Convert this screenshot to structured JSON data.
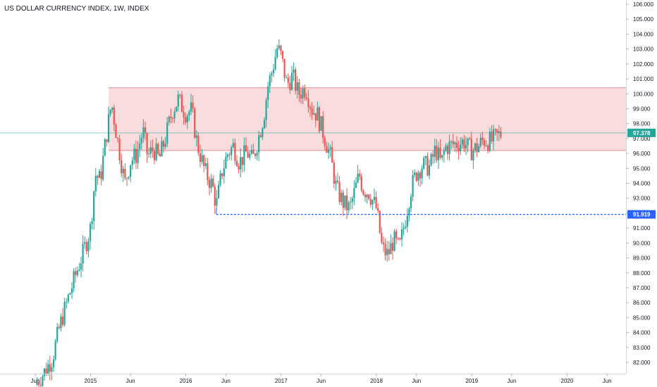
{
  "chart_data": {
    "type": "candlestick",
    "title": "US DOLLAR CURRENCY INDEX, 1W, INDEX",
    "ylim": [
      81.2,
      106.2
    ],
    "y_ticks": [
      "82.000",
      "83.000",
      "84.000",
      "85.000",
      "86.000",
      "87.000",
      "88.000",
      "89.000",
      "90.000",
      "91.000",
      "92.000",
      "93.000",
      "94.000",
      "95.000",
      "96.000",
      "97.000",
      "98.000",
      "99.000",
      "100.000",
      "101.000",
      "102.000",
      "103.000",
      "104.000",
      "105.000",
      "106.000"
    ],
    "x_ticks": [
      {
        "label": "Jun",
        "t": 2014.42
      },
      {
        "label": "2015",
        "t": 2015.0
      },
      {
        "label": "Jun",
        "t": 2015.42
      },
      {
        "label": "2016",
        "t": 2016.0
      },
      {
        "label": "Jun",
        "t": 2016.42
      },
      {
        "label": "2017",
        "t": 2017.0
      },
      {
        "label": "Jun",
        "t": 2017.42
      },
      {
        "label": "2018",
        "t": 2018.0
      },
      {
        "label": "Jun",
        "t": 2018.42
      },
      {
        "label": "2019",
        "t": 2019.0
      },
      {
        "label": "Jun",
        "t": 2019.42
      },
      {
        "label": "2020",
        "t": 2020.0
      },
      {
        "label": "Jun",
        "t": 2020.42
      }
    ],
    "zone": {
      "from_t": 2015.19,
      "y_low": 96.2,
      "y_high": 100.4,
      "fill": "#f7d1d3",
      "border": "#e58b8f"
    },
    "support_line": {
      "from_t": 2016.32,
      "value": 91.919,
      "label": "91.919",
      "color": "#2962ff"
    },
    "last_price": {
      "value": 97.378,
      "label": "97.378",
      "color": "#26a69a"
    },
    "up_color": "#26a69a",
    "down_color": "#ef5350",
    "keypoints": [
      [
        2014.42,
        80.5
      ],
      [
        2014.52,
        81.4
      ],
      [
        2014.6,
        82.3
      ],
      [
        2014.68,
        84.5
      ],
      [
        2014.76,
        86.2
      ],
      [
        2014.85,
        88.0
      ],
      [
        2014.92,
        89.3
      ],
      [
        2015.0,
        91.0
      ],
      [
        2015.05,
        94.6
      ],
      [
        2015.1,
        94.2
      ],
      [
        2015.18,
        97.8
      ],
      [
        2015.22,
        99.4
      ],
      [
        2015.28,
        97.0
      ],
      [
        2015.36,
        94.0
      ],
      [
        2015.42,
        95.5
      ],
      [
        2015.48,
        95.9
      ],
      [
        2015.55,
        97.5
      ],
      [
        2015.6,
        95.8
      ],
      [
        2015.66,
        96.3
      ],
      [
        2015.72,
        95.6
      ],
      [
        2015.78,
        96.9
      ],
      [
        2015.86,
        98.9
      ],
      [
        2015.92,
        99.6
      ],
      [
        2016.0,
        98.7
      ],
      [
        2016.06,
        98.9
      ],
      [
        2016.12,
        96.6
      ],
      [
        2016.2,
        94.8
      ],
      [
        2016.28,
        93.8
      ],
      [
        2016.32,
        92.5
      ],
      [
        2016.38,
        94.8
      ],
      [
        2016.44,
        96.0
      ],
      [
        2016.5,
        96.5
      ],
      [
        2016.56,
        95.4
      ],
      [
        2016.64,
        96.1
      ],
      [
        2016.7,
        95.5
      ],
      [
        2016.76,
        97.0
      ],
      [
        2016.82,
        98.6
      ],
      [
        2016.86,
        100.5
      ],
      [
        2016.9,
        101.4
      ],
      [
        2016.96,
        103.1
      ],
      [
        2017.0,
        102.5
      ],
      [
        2017.06,
        100.6
      ],
      [
        2017.12,
        101.2
      ],
      [
        2017.18,
        100.0
      ],
      [
        2017.26,
        100.4
      ],
      [
        2017.32,
        99.0
      ],
      [
        2017.38,
        98.6
      ],
      [
        2017.46,
        97.0
      ],
      [
        2017.52,
        95.7
      ],
      [
        2017.58,
        93.6
      ],
      [
        2017.66,
        92.6
      ],
      [
        2017.72,
        92.3
      ],
      [
        2017.76,
        93.2
      ],
      [
        2017.82,
        94.6
      ],
      [
        2017.86,
        93.6
      ],
      [
        2017.92,
        93.4
      ],
      [
        2018.0,
        92.3
      ],
      [
        2018.06,
        89.6
      ],
      [
        2018.12,
        89.2
      ],
      [
        2018.18,
        90.2
      ],
      [
        2018.24,
        89.6
      ],
      [
        2018.3,
        91.5
      ],
      [
        2018.36,
        93.6
      ],
      [
        2018.42,
        94.7
      ],
      [
        2018.48,
        95.2
      ],
      [
        2018.56,
        95.1
      ],
      [
        2018.62,
        96.3
      ],
      [
        2018.68,
        95.3
      ],
      [
        2018.72,
        96.4
      ],
      [
        2018.8,
        96.6
      ],
      [
        2018.86,
        96.7
      ],
      [
        2018.92,
        96.8
      ],
      [
        2018.96,
        96.4
      ],
      [
        2019.0,
        96.2
      ],
      [
        2019.06,
        96.4
      ],
      [
        2019.12,
        96.9
      ],
      [
        2019.2,
        96.8
      ],
      [
        2019.26,
        97.1
      ],
      [
        2019.32,
        97.378
      ]
    ]
  }
}
